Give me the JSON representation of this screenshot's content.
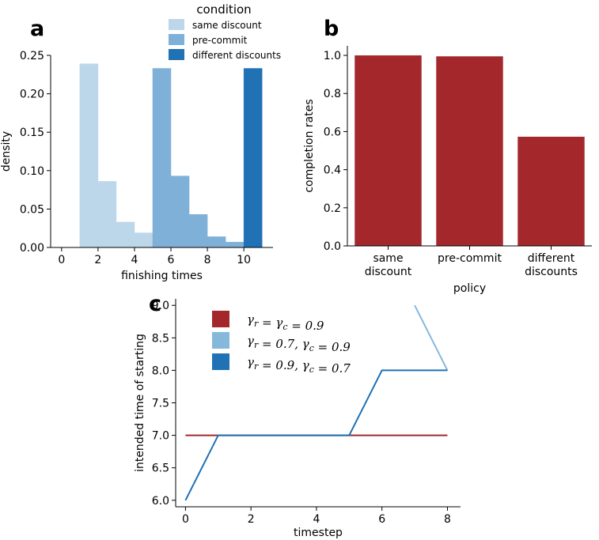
{
  "panels": {
    "a": "a",
    "b": "b",
    "c": "c"
  },
  "chart_data": [
    {
      "type": "bar",
      "subtype": "histogram",
      "xlabel": "finishing times",
      "ylabel": "density",
      "xlim": [
        -0.6,
        11.6
      ],
      "ylim": [
        0,
        0.25
      ],
      "xticks": [
        "0",
        "2",
        "4",
        "6",
        "8",
        "10"
      ],
      "xtick_values": [
        0,
        2,
        4,
        6,
        8,
        10
      ],
      "yticks": [
        "0.00",
        "0.05",
        "0.10",
        "0.15",
        "0.20",
        "0.25"
      ],
      "ytick_values": [
        0,
        0.05,
        0.1,
        0.15,
        0.2,
        0.25
      ],
      "legend": {
        "title": "condition",
        "position": "top"
      },
      "series": [
        {
          "name": "same discount",
          "color": "#bcd6ea",
          "bins": [
            [
              1,
              2,
              0.239
            ],
            [
              2,
              3,
              0.086
            ],
            [
              3,
              4,
              0.033
            ],
            [
              4,
              5,
              0.019
            ],
            [
              5,
              6,
              0.011
            ],
            [
              6,
              7,
              0.005
            ],
            [
              7,
              8,
              0.005
            ],
            [
              8,
              9,
              0.003
            ],
            [
              9,
              10,
              0.003
            ],
            [
              10,
              11,
              0.003
            ]
          ]
        },
        {
          "name": "pre-commit",
          "color": "#7fb1d8",
          "bins": [
            [
              5,
              6,
              0.233
            ],
            [
              6,
              7,
              0.093
            ],
            [
              7,
              8,
              0.043
            ],
            [
              8,
              9,
              0.014
            ],
            [
              9,
              10,
              0.007
            ]
          ]
        },
        {
          "name": "different discounts",
          "color": "#2171b5",
          "bins": [
            [
              10,
              11,
              0.233
            ]
          ]
        }
      ]
    },
    {
      "type": "bar",
      "xlabel": "policy",
      "ylabel": "completion rates",
      "categories": [
        [
          "same",
          "discount"
        ],
        [
          "pre-commit"
        ],
        [
          "different",
          "discounts"
        ]
      ],
      "values": [
        1.0,
        0.995,
        0.573
      ],
      "color": "#a4282b",
      "ylim": [
        0,
        1.05
      ],
      "yticks": [
        "0.0",
        "0.2",
        "0.4",
        "0.6",
        "0.8",
        "1.0"
      ],
      "ytick_values": [
        0,
        0.2,
        0.4,
        0.6,
        0.8,
        1.0
      ]
    },
    {
      "type": "line",
      "xlabel": "timestep",
      "ylabel": "intended time of starting",
      "xlim": [
        -0.3,
        8.4
      ],
      "ylim": [
        5.9,
        9.1
      ],
      "xticks": [
        "0",
        "2",
        "4",
        "6",
        "8"
      ],
      "xtick_values": [
        0,
        2,
        4,
        6,
        8
      ],
      "yticks": [
        "6.0",
        "6.5",
        "7.0",
        "7.5",
        "8.0",
        "8.5",
        "9.0"
      ],
      "ytick_values": [
        6.0,
        6.5,
        7.0,
        7.5,
        8.0,
        8.5,
        9.0
      ],
      "legend": {
        "position": "top-left"
      },
      "series": [
        {
          "name": "γr = γc = 0.9",
          "label_parts": [
            [
              "γ",
              "r"
            ],
            [
              " = "
            ],
            [
              "γ",
              "c"
            ],
            [
              " = 0.9"
            ]
          ],
          "color": "#a4282b",
          "x": [
            0,
            1,
            2,
            3,
            4,
            5,
            6,
            7,
            8
          ],
          "y": [
            7,
            7,
            7,
            7,
            7,
            7,
            7,
            7,
            7
          ]
        },
        {
          "name": "γr = 0.7, γc = 0.9",
          "label_parts": [
            [
              "γ",
              "r"
            ],
            [
              " = 0.7,  "
            ],
            [
              "γ",
              "c"
            ],
            [
              " = 0.9"
            ]
          ],
          "color": "#86b8dc",
          "x": [
            7,
            8
          ],
          "y": [
            9.0,
            8.0
          ]
        },
        {
          "name": "γr = 0.9, γc = 0.7",
          "label_parts": [
            [
              "γ",
              "r"
            ],
            [
              " = 0.9,  "
            ],
            [
              "γ",
              "c"
            ],
            [
              " = 0.7"
            ]
          ],
          "color": "#2171b5",
          "x": [
            0,
            1,
            2,
            3,
            4,
            5,
            6,
            7,
            8
          ],
          "y": [
            6,
            7,
            7,
            7,
            7,
            7,
            8,
            8,
            8
          ]
        }
      ]
    }
  ]
}
